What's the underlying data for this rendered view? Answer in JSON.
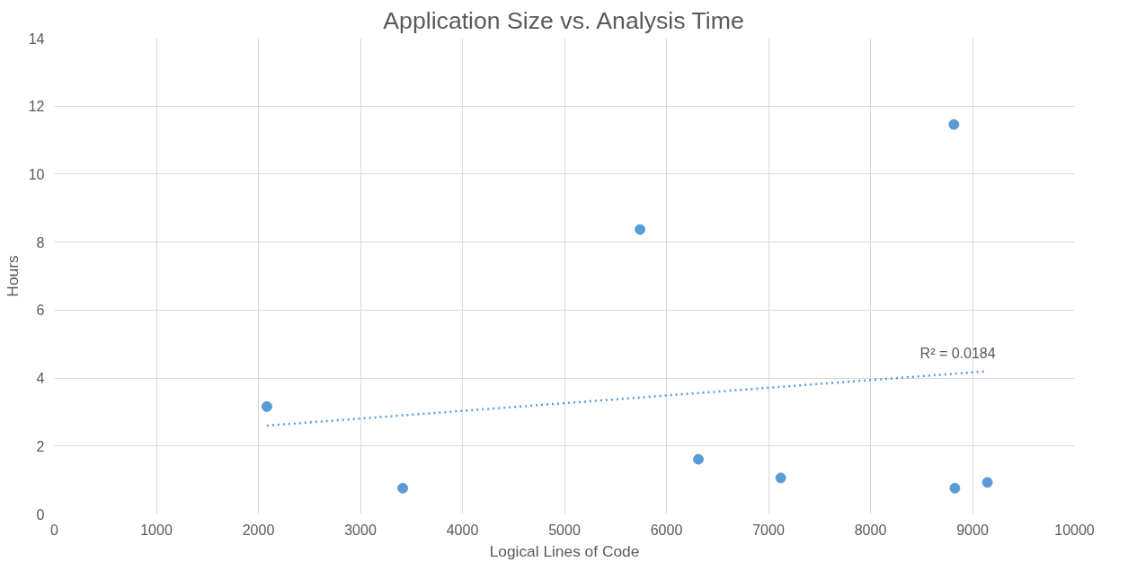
{
  "chart_data": {
    "type": "scatter",
    "title": "Application Size vs. Analysis Time",
    "xlabel": "Logical Lines of Code",
    "ylabel": "Hours",
    "x": [
      2083,
      3415,
      5741,
      6313,
      7120,
      8818,
      8827,
      9146
    ],
    "series": [
      {
        "color": "#5b9bd5",
        "values": [
          3.16,
          0.76,
          8.37,
          1.61,
          1.06,
          11.46,
          0.76,
          0.93
        ],
        "marker": "circle"
      },
      {
        "type": "line",
        "color": "#5b9bd5",
        "x": [
          2083,
          9146
        ],
        "values": [
          2.6,
          4.2
        ],
        "line_style": "dotted"
      }
    ],
    "annotations": [
      "R² = 0.0184"
    ],
    "xlim": [
      0,
      10000
    ],
    "ylim": [
      0,
      14
    ],
    "xticks": [
      0,
      1000,
      2000,
      3000,
      4000,
      5000,
      6000,
      7000,
      8000,
      9000,
      10000
    ],
    "yticks": [
      0,
      2,
      4,
      6,
      8,
      10,
      12,
      14
    ],
    "grid": true
  }
}
